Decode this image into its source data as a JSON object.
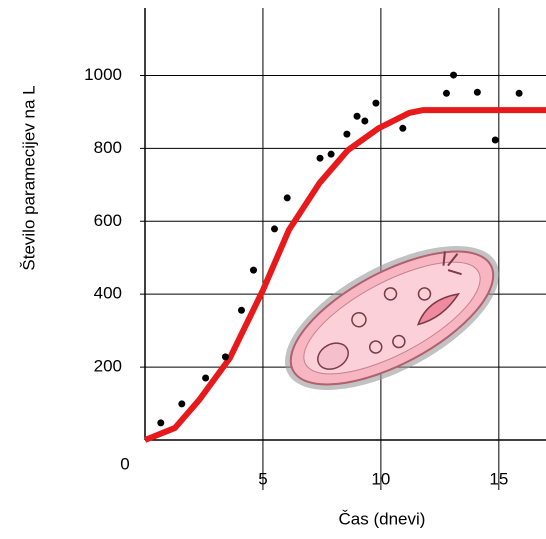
{
  "chart_data": {
    "type": "scatter",
    "x_label": "Čas (dnevi)",
    "y_label": "Število paramecijev na L",
    "xlim": [
      0,
      17
    ],
    "ylim": [
      0,
      1185
    ],
    "xticks": [
      0,
      5,
      10,
      15
    ],
    "yticks": [
      200,
      400,
      600,
      800,
      1000
    ],
    "grid": true,
    "series": [
      {
        "type": "scatter",
        "color": "#000000",
        "x": [
          0.67,
          1.56,
          2.57,
          3.41,
          4.09,
          4.6,
          5.49,
          6.03,
          7.42,
          7.89,
          8.56,
          8.99,
          9.32,
          9.79,
          10.93,
          12.78,
          13.08,
          14.09,
          14.85,
          15.86
        ],
        "values": [
          47,
          99,
          170,
          228,
          356,
          466,
          579,
          664,
          773,
          784,
          839,
          888,
          875,
          924,
          855,
          951,
          1001,
          954,
          823,
          951
        ]
      },
      {
        "type": "line",
        "color": "#e8191a",
        "x": [
          0,
          1.27,
          2.3,
          3.6,
          5,
          6.1,
          7.4,
          8.6,
          9.9,
          11.2,
          11.8,
          17
        ],
        "values": [
          0,
          33,
          110,
          225,
          411,
          576,
          705,
          795,
          855,
          897,
          905,
          905
        ]
      }
    ]
  }
}
